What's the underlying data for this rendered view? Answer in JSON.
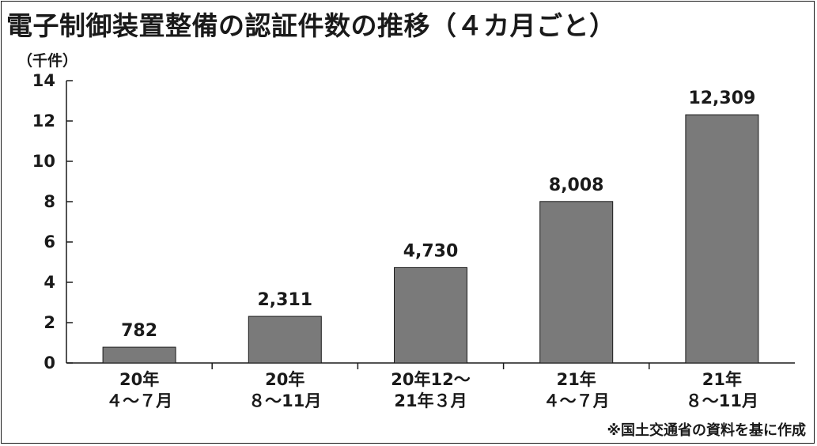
{
  "chart_data": {
    "type": "bar",
    "title": "電子制御装置整備の認証件数の推移（４カ月ごと）",
    "ylabel": "（千件）",
    "ylim": [
      0,
      14
    ],
    "yticks": [
      "0",
      "2",
      "4",
      "6",
      "8",
      "10",
      "12",
      "14"
    ],
    "categories": [
      [
        "20年",
        "４～７月"
      ],
      [
        "20年",
        "８～11月"
      ],
      [
        "20年12～",
        "21年３月"
      ],
      [
        "21年",
        "４～７月"
      ],
      [
        "21年",
        "８～11月"
      ]
    ],
    "values": [
      782,
      2311,
      4730,
      8008,
      12309
    ],
    "data_labels": [
      "782",
      "2,311",
      "4,730",
      "8,008",
      "12,309"
    ],
    "bar_color": "#7a7a7a",
    "grid": false,
    "source": "※国土交通省の資料を基に作成"
  }
}
